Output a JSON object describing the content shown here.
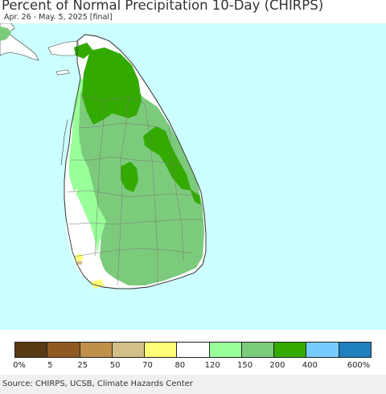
{
  "title": "Percent of Normal Precipitation 10-Day (CHIRPS)",
  "subtitle": "Apr. 26 - May. 5, 2025 [final]",
  "map": {
    "region": "Sri Lanka",
    "ocean_color": "#ccffff",
    "land_outside_color": "#ffffff",
    "data_colors": [
      "#5a3a13",
      "#8f5a22",
      "#c08f4a",
      "#d2c088",
      "#ffff77",
      "#ffffff",
      "#99ff99",
      "#7ccb7c",
      "#33aa00",
      "#77ccff",
      "#1f7fbf"
    ]
  },
  "legend": {
    "colors": [
      "#5a3a13",
      "#8f5a22",
      "#c08f4a",
      "#d2c088",
      "#ffff77",
      "#ffffff",
      "#99ff99",
      "#7ccb7c",
      "#33aa00",
      "#77ccff",
      "#1f7fbf"
    ],
    "labels": [
      "0%",
      "5",
      "25",
      "50",
      "70",
      "80",
      "120",
      "150",
      "200",
      "400",
      "600%"
    ]
  },
  "source": "Source: CHIRPS, UCSB, Climate Hazards Center"
}
